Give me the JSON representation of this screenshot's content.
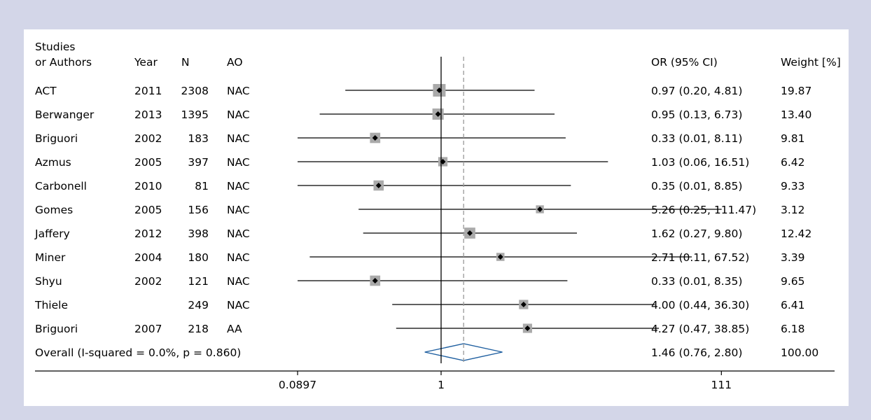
{
  "chart_data": {
    "type": "forest",
    "headers": {
      "study": [
        "Studies",
        "or Authors"
      ],
      "year": "Year",
      "n": "N",
      "ao": "AO",
      "or_ci": "OR (95% CI)",
      "weight": "Weight [%]"
    },
    "studies": [
      {
        "name": "ACT",
        "year": "2011",
        "n": "2308",
        "ao": "NAC",
        "or": 0.97,
        "lo": 0.2,
        "hi": 4.81,
        "or_text": "0.97 (0.20, 4.81)",
        "weight": "19.87"
      },
      {
        "name": "Berwanger",
        "year": "2013",
        "n": "1395",
        "ao": "NAC",
        "or": 0.95,
        "lo": 0.13,
        "hi": 6.73,
        "or_text": "0.95 (0.13, 6.73)",
        "weight": "13.40"
      },
      {
        "name": "Briguori",
        "year": "2002",
        "n": "183",
        "ao": "NAC",
        "or": 0.33,
        "lo": 0.01,
        "hi": 8.11,
        "or_text": "0.33 (0.01, 8.11)",
        "weight": "9.81"
      },
      {
        "name": "Azmus",
        "year": "2005",
        "n": "397",
        "ao": "NAC",
        "or": 1.03,
        "lo": 0.06,
        "hi": 16.51,
        "or_text": "1.03 (0.06, 16.51)",
        "weight": "6.42"
      },
      {
        "name": "Carbonell",
        "year": "2010",
        "n": "81",
        "ao": "NAC",
        "or": 0.35,
        "lo": 0.01,
        "hi": 8.85,
        "or_text": "0.35 (0.01, 8.85)",
        "weight": "9.33"
      },
      {
        "name": "Gomes",
        "year": "2005",
        "n": "156",
        "ao": "NAC",
        "or": 5.26,
        "lo": 0.25,
        "hi": 111.47,
        "or_text": "5.26 (0.25, 111.47)",
        "weight": "3.12"
      },
      {
        "name": "Jaffery",
        "year": "2012",
        "n": "398",
        "ao": "NAC",
        "or": 1.62,
        "lo": 0.27,
        "hi": 9.8,
        "or_text": "1.62 (0.27, 9.80)",
        "weight": "12.42"
      },
      {
        "name": "Miner",
        "year": "2004",
        "n": "180",
        "ao": "NAC",
        "or": 2.71,
        "lo": 0.11,
        "hi": 67.52,
        "or_text": "2.71 (0.11, 67.52)",
        "weight": "3.39"
      },
      {
        "name": "Shyu",
        "year": "2002",
        "n": "121",
        "ao": "NAC",
        "or": 0.33,
        "lo": 0.01,
        "hi": 8.35,
        "or_text": "0.33 (0.01, 8.35)",
        "weight": "9.65"
      },
      {
        "name": "Thiele",
        "year": "",
        "n": "249",
        "ao": "NAC",
        "or": 4.0,
        "lo": 0.44,
        "hi": 36.3,
        "or_text": "4.00 (0.44, 36.30)",
        "weight": "6.41"
      },
      {
        "name": "Briguori",
        "year": "2007",
        "n": "218",
        "ao": "AA",
        "or": 4.27,
        "lo": 0.47,
        "hi": 38.85,
        "or_text": "4.27 (0.47, 38.85)",
        "weight": "6.18"
      }
    ],
    "overall": {
      "label": "Overall (I-squared = 0.0%, p = 0.860)",
      "or": 1.46,
      "lo": 0.76,
      "hi": 2.8,
      "or_text": "1.46 (0.76, 2.80)",
      "weight": "100.00"
    },
    "x_axis": {
      "scale": "log",
      "ticks": [
        0.0897,
        1,
        111
      ],
      "tick_labels": [
        "0.0897",
        "1",
        "111"
      ],
      "clip_min": 0.0897
    },
    "null_line": 1,
    "colors": {
      "box": "#aaaaaa",
      "point": "#000000",
      "ci_line": "#000000",
      "diamond": "#1f5fa0",
      "overall_line": "#999999",
      "background": "#d3d6e8"
    }
  }
}
